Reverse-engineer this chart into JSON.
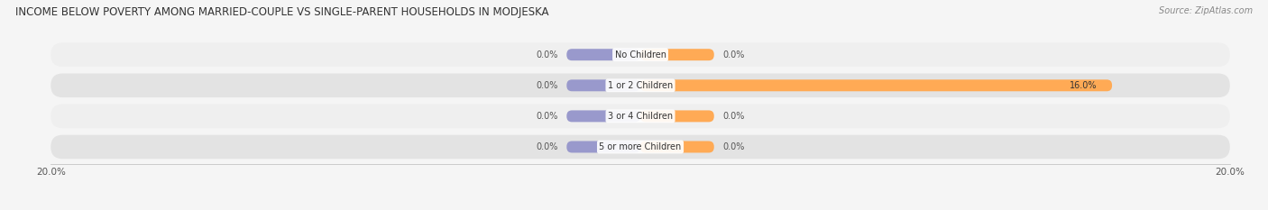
{
  "title": "INCOME BELOW POVERTY AMONG MARRIED-COUPLE VS SINGLE-PARENT HOUSEHOLDS IN MODJESKA",
  "source": "Source: ZipAtlas.com",
  "categories": [
    "No Children",
    "1 or 2 Children",
    "3 or 4 Children",
    "5 or more Children"
  ],
  "married_values": [
    0.0,
    0.0,
    0.0,
    0.0
  ],
  "single_values": [
    0.0,
    16.0,
    0.0,
    0.0
  ],
  "married_color": "#9999cc",
  "single_color": "#ffaa55",
  "row_color_odd": "#efefef",
  "row_color_even": "#e3e3e3",
  "x_max": 20.0,
  "x_min": -20.0,
  "title_fontsize": 8.5,
  "source_fontsize": 7,
  "label_fontsize": 7,
  "category_fontsize": 7,
  "axis_label_fontsize": 7.5,
  "background_color": "#f5f5f5",
  "stub_size": 2.5
}
